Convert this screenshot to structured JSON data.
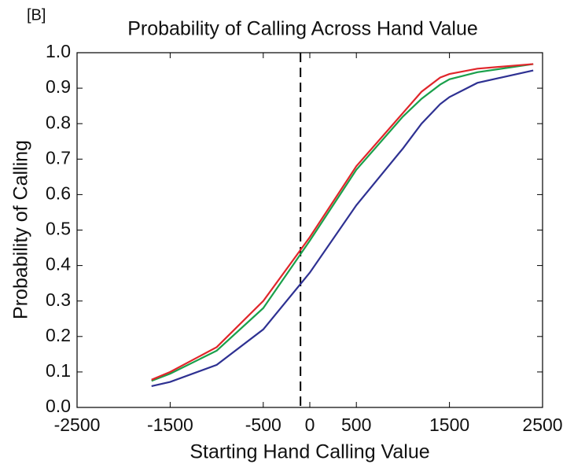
{
  "chart_data": {
    "type": "line",
    "panel_label": "[B]",
    "title": "Probability of Calling Across Hand Value",
    "x_label": "Starting Hand Calling Value",
    "y_label": "Probability of Calling",
    "x": [
      -1700,
      -1500,
      -1000,
      -500,
      0,
      500,
      1000,
      1200,
      1400,
      1500,
      1800,
      2400
    ],
    "series": [
      {
        "color": "#2e3192",
        "values": [
          0.06,
          0.072,
          0.12,
          0.22,
          0.38,
          0.57,
          0.73,
          0.8,
          0.855,
          0.875,
          0.915,
          0.95
        ]
      },
      {
        "color": "#1aa04b",
        "values": [
          0.075,
          0.095,
          0.16,
          0.28,
          0.47,
          0.67,
          0.82,
          0.87,
          0.91,
          0.925,
          0.945,
          0.968
        ]
      },
      {
        "color": "#e0262b",
        "values": [
          0.078,
          0.1,
          0.17,
          0.3,
          0.48,
          0.68,
          0.83,
          0.89,
          0.93,
          0.94,
          0.955,
          0.968
        ]
      }
    ],
    "vline": -100,
    "xlim": [
      -2500,
      2500
    ],
    "xticks": [
      -2500,
      -1500,
      -500,
      0,
      500,
      1500,
      2500
    ],
    "ylim": [
      0,
      1
    ],
    "yticks": [
      {
        "value": 0,
        "label": "0.0"
      },
      0.1,
      0.2,
      0.3,
      0.4,
      0.5,
      0.6,
      0.7,
      0.8,
      0.9,
      {
        "value": 1,
        "label": "1.0"
      }
    ]
  }
}
